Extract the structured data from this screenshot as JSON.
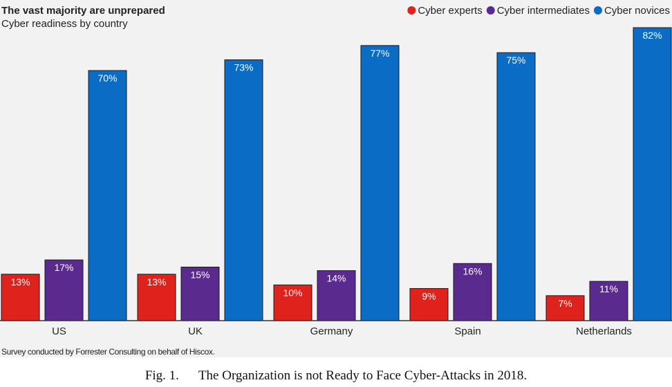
{
  "chart_data": {
    "type": "bar",
    "title": "The vast majority are unprepared",
    "subtitle": "Cyber readiness by country",
    "categories": [
      "US",
      "UK",
      "Germany",
      "Spain",
      "Netherlands"
    ],
    "series": [
      {
        "name": "Cyber experts",
        "color": "#e0221d",
        "values": [
          13,
          13,
          10,
          9,
          7
        ],
        "labels": [
          "13%",
          "13%",
          "10%",
          "9%",
          "7%"
        ]
      },
      {
        "name": "Cyber intermediates",
        "color": "#5b2a8e",
        "values": [
          17,
          15,
          14,
          16,
          11
        ],
        "labels": [
          "17%",
          "15%",
          "14%",
          "16%",
          "11%"
        ]
      },
      {
        "name": "Cyber novices",
        "color": "#0a6cc4",
        "values": [
          70,
          73,
          77,
          75,
          82
        ],
        "labels": [
          "70%",
          "73%",
          "77%",
          "75%",
          "82%"
        ]
      }
    ],
    "ylim": [
      0,
      85
    ],
    "grid": false,
    "legend_position": "top-right",
    "source": "Survey conducted by Forrester Consulting on behalf of Hiscox.",
    "background": "#f2f2f2"
  },
  "caption": {
    "label": "Fig. 1.",
    "text": "The Organization is not Ready to Face Cyber-Attacks in 2018."
  }
}
